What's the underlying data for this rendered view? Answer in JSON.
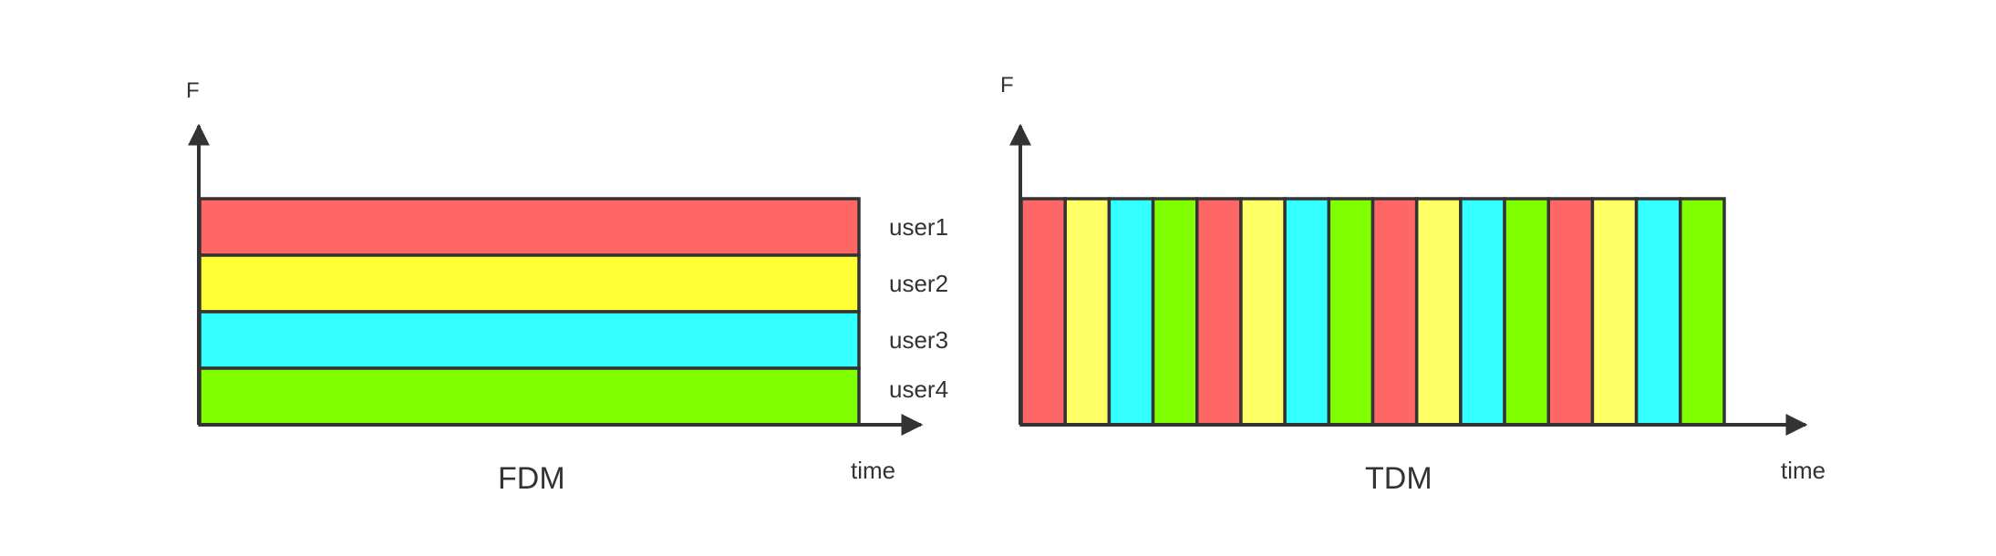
{
  "fdm": {
    "axis_y_label": "F",
    "axis_x_label": "time",
    "caption": "FDM",
    "bands": [
      {
        "user": "user1",
        "color": "#ff6666"
      },
      {
        "user": "user2",
        "color": "#ffff33"
      },
      {
        "user": "user3",
        "color": "#33ffff"
      },
      {
        "user": "user4",
        "color": "#80ff00"
      }
    ]
  },
  "tdm": {
    "axis_y_label": "F",
    "axis_x_label": "time",
    "caption": "TDM",
    "slot_sequence": [
      "user1",
      "user2",
      "user3",
      "user4",
      "user1",
      "user2",
      "user3",
      "user4",
      "user1",
      "user2",
      "user3",
      "user4",
      "user1",
      "user2",
      "user3",
      "user4"
    ],
    "slot_colors": {
      "user1": "#ff6666",
      "user2": "#ffff66",
      "user3": "#33ffff",
      "user4": "#80ff00"
    }
  },
  "colors": {
    "stroke": "#333333",
    "text": "#333333"
  }
}
